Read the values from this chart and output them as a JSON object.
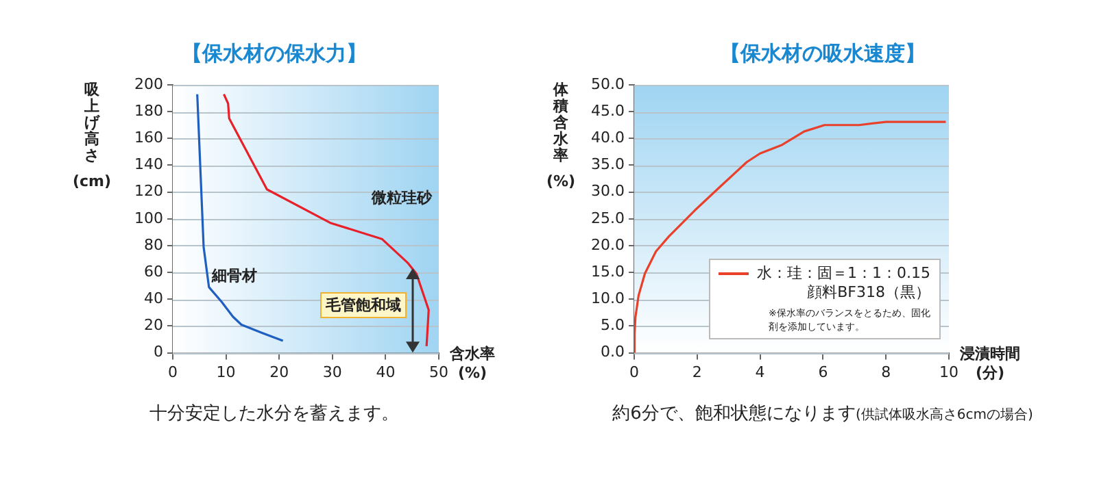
{
  "chart_data": [
    {
      "type": "line",
      "title": "【保水材の保水力】",
      "xlabel": "含水率\n(%)",
      "ylabel": "吸上げ高さ\n(cm)",
      "xlim": [
        0,
        50
      ],
      "xticks": [
        0,
        10,
        20,
        30,
        40,
        50
      ],
      "ylim": [
        0,
        200
      ],
      "yticks": [
        0,
        20,
        40,
        60,
        80,
        100,
        120,
        140,
        160,
        180,
        200
      ],
      "grid": "y",
      "marker": "none",
      "legend": false,
      "series": [
        {
          "name": "細骨材",
          "color": "#1f5fc0",
          "x": [
            4.6,
            5.8,
            6.5,
            6.8,
            9.2,
            11.3,
            12.9,
            16.7,
            20.7
          ],
          "values": [
            193,
            79,
            58,
            49,
            38,
            27,
            21,
            15,
            9
          ]
        },
        {
          "name": "微粒珪砂",
          "color": "#e8202a",
          "x": [
            9.6,
            10.4,
            10.6,
            17.7,
            29.6,
            39.3,
            44.2,
            45.8,
            48.1,
            47.7
          ],
          "values": [
            193,
            186,
            175,
            122,
            97,
            85,
            67,
            59,
            32,
            5
          ]
        }
      ],
      "annotations": [
        "毛管飽和域",
        "十分安定した水分を蓄えます。"
      ]
    },
    {
      "type": "line",
      "title": "【保水材の吸水速度】",
      "xlabel": "浸漬時間\n(分)",
      "ylabel": "体積含水率\n(%)",
      "xlim": [
        0,
        10
      ],
      "xticks": [
        0,
        2,
        4,
        6,
        8,
        10
      ],
      "ylim": [
        0,
        50
      ],
      "yticks": [
        {
          "value": 0,
          "label": "0.0"
        },
        {
          "value": 5,
          "label": "5.0"
        },
        {
          "value": 10,
          "label": "10.0"
        },
        {
          "value": 15,
          "label": "15.0"
        },
        {
          "value": 20,
          "label": "20.0"
        },
        {
          "value": 25,
          "label": "25.0"
        },
        {
          "value": 30,
          "label": "30.0"
        },
        {
          "value": 35,
          "label": "35.0"
        },
        {
          "value": 40,
          "label": "40.0"
        },
        {
          "value": 45,
          "label": "45.0"
        },
        {
          "value": 50,
          "label": "50.0"
        }
      ],
      "grid": "y",
      "marker": "none",
      "legend": "bottom right",
      "series": [
        {
          "name": "水：珪：固＝1：1：0.15\n顔料BF318（黒）",
          "color": "#e8402a",
          "x": [
            0,
            0.01,
            0.04,
            0.14,
            0.34,
            0.69,
            1.1,
            1.93,
            2.75,
            3.58,
            4.0,
            4.7,
            5.4,
            6.05,
            7.15,
            8,
            9.9
          ],
          "values": [
            0,
            3.4,
            6.7,
            10.7,
            14.8,
            18.9,
            21.7,
            26.6,
            31.1,
            35.6,
            37.2,
            38.8,
            41.3,
            42.5,
            42.5,
            43.1,
            43.1
          ]
        }
      ],
      "annotations": [
        "※保水率のバランスをとるため、固化剤を添加しています。",
        "約6分で、飽和状態になります",
        "(供試体吸水高さ6cmの場合)"
      ]
    }
  ]
}
